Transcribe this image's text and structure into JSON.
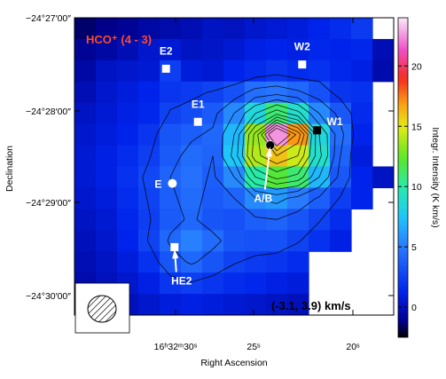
{
  "chart_data": {
    "type": "heatmap",
    "title": "HCO⁺ (4 - 3)",
    "velocity_range_label": "(-3.1, 3.9) km/s",
    "xlabel": "Right Ascension",
    "ylabel": "Declination",
    "colorbar_label": "Integr. Intensity  (K km/s)",
    "colorbar_ticks": [
      0,
      5,
      10,
      15,
      20
    ],
    "colorbar_range": [
      -2.5,
      24
    ],
    "x_ticks": [
      "16ʰ32ᵐ30ˢ",
      "25ˢ",
      "20ˢ"
    ],
    "y_ticks": [
      "−24°27′00″",
      "−24°28′00″",
      "−24°29′00″",
      "−24°30′00″"
    ],
    "contour_levels": [
      2.5,
      4,
      5.5,
      7,
      8.5,
      10,
      11.5,
      13,
      14.5,
      16,
      17.5,
      19
    ],
    "grid_units": "K km/s",
    "grid": [
      [
        -1.5,
        -1.2,
        -1.0,
        -0.6,
        -0.4,
        -0.2,
        0.2,
        0.1,
        0.4,
        0.6,
        0.8,
        1.2,
        1.6,
        2.2,
        null
      ],
      [
        -1.0,
        -0.6,
        -0.2,
        0.4,
        0.6,
        0.2,
        0.3,
        0.6,
        1.0,
        1.2,
        1.0,
        1.4,
        1.2,
        1.4,
        -0.2
      ],
      [
        -0.6,
        0.2,
        0.4,
        0.6,
        2.4,
        0.8,
        0.6,
        1.2,
        1.6,
        2.0,
        1.6,
        1.8,
        1.4,
        1.0,
        -0.4
      ],
      [
        -0.2,
        0.4,
        0.8,
        1.2,
        2.0,
        2.2,
        2.6,
        3.2,
        4.5,
        4.8,
        4.2,
        3.2,
        2.0,
        1.8,
        null
      ],
      [
        0.2,
        0.6,
        1.0,
        1.4,
        2.6,
        3.0,
        3.6,
        5.5,
        8.5,
        11.0,
        9.0,
        5.5,
        3.5,
        1.5,
        null
      ],
      [
        0.4,
        0.8,
        1.2,
        2.0,
        3.4,
        3.8,
        4.2,
        7.0,
        13.5,
        22.5,
        17.0,
        8.5,
        4.5,
        1.2,
        null
      ],
      [
        0.6,
        1.0,
        1.6,
        2.4,
        3.6,
        4.4,
        4.0,
        7.5,
        14.0,
        16.0,
        14.5,
        9.0,
        4.0,
        0.8,
        null
      ],
      [
        0.6,
        1.0,
        1.8,
        2.8,
        4.0,
        4.6,
        3.8,
        5.5,
        10.0,
        12.0,
        11.0,
        7.0,
        3.5,
        1.2,
        0.2
      ],
      [
        0.4,
        0.8,
        1.6,
        2.6,
        3.8,
        4.4,
        3.6,
        4.0,
        5.5,
        6.0,
        5.0,
        3.8,
        2.4,
        1.2,
        null
      ],
      [
        0.2,
        0.6,
        1.4,
        2.4,
        3.6,
        4.2,
        3.4,
        3.2,
        3.8,
        4.0,
        3.4,
        2.6,
        1.6,
        null,
        null
      ],
      [
        0.0,
        0.4,
        1.2,
        2.6,
        4.2,
        5.2,
        4.4,
        3.4,
        3.2,
        3.2,
        2.6,
        1.8,
        1.0,
        null,
        null
      ],
      [
        -0.2,
        0.2,
        0.8,
        1.8,
        3.4,
        4.2,
        3.4,
        2.6,
        2.2,
        2.0,
        1.6,
        null,
        null,
        null,
        null
      ],
      [
        -0.4,
        0.0,
        0.4,
        1.0,
        2.0,
        2.4,
        2.0,
        1.6,
        1.4,
        1.0,
        0.8,
        null,
        null,
        null,
        null
      ],
      [
        -0.6,
        -0.4,
        0.0,
        0.4,
        0.8,
        1.0,
        0.8,
        0.6,
        0.4,
        0.2,
        0.0,
        null,
        null,
        null,
        null
      ]
    ],
    "markers": [
      {
        "name": "E2",
        "shape": "square",
        "color": "#ffffff",
        "col": 4.3,
        "row": 2.4,
        "label_dx": 0,
        "label_dy": -16
      },
      {
        "name": "W2",
        "shape": "square",
        "color": "#ffffff",
        "col": 10.7,
        "row": 2.2,
        "label_dx": 0,
        "label_dy": -16
      },
      {
        "name": "E1",
        "shape": "square",
        "color": "#ffffff",
        "col": 5.8,
        "row": 4.9,
        "label_dx": 0,
        "label_dy": -16
      },
      {
        "name": "W1",
        "shape": "square",
        "color": "#000000",
        "col": 11.4,
        "row": 5.3,
        "label_dx": 20,
        "label_dy": -6
      },
      {
        "name": "E",
        "shape": "circle",
        "color": "#ffffff",
        "col": 4.6,
        "row": 7.8,
        "label_dx": -16,
        "label_dy": 5
      },
      {
        "name": "A/B",
        "shape": "circle",
        "color": "#000000",
        "col": 9.2,
        "row": 6.0,
        "label_dx": -8,
        "label_dy": 64
      },
      {
        "name": "HE2",
        "shape": "square",
        "color": "#ffffff",
        "col": 4.7,
        "row": 10.8,
        "label_dx": 8,
        "label_dy": 42
      }
    ],
    "beam": {
      "shape": "hatched-ellipse",
      "location": "bottom-left"
    }
  }
}
